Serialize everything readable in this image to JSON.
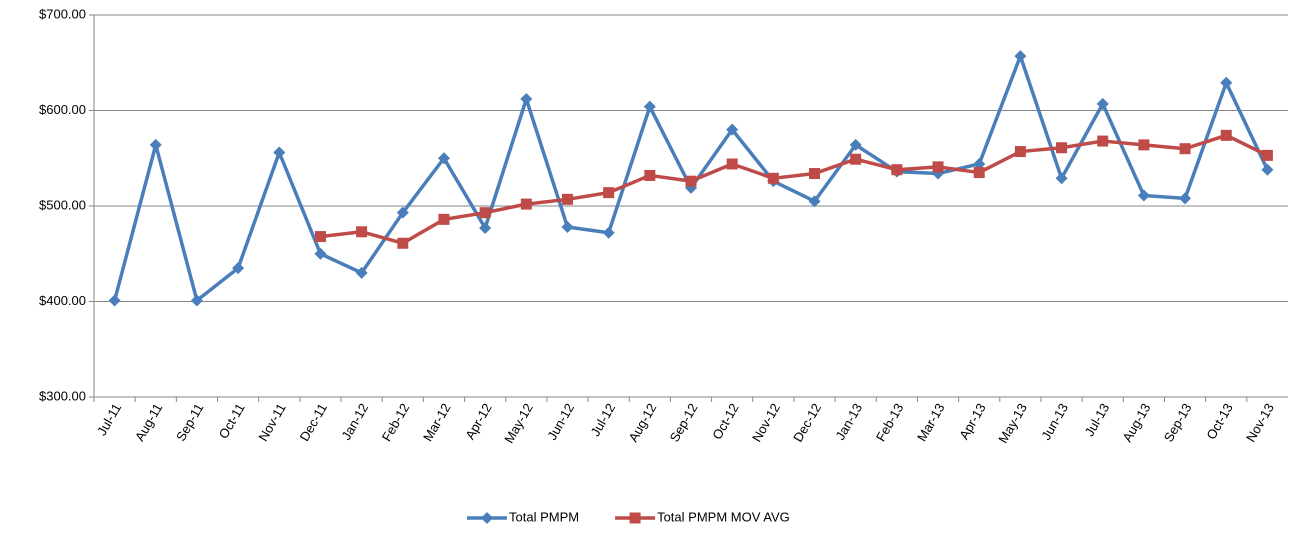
{
  "chart_data": {
    "type": "line",
    "categories": [
      "Jul-11",
      "Aug-11",
      "Sep-11",
      "Oct-11",
      "Nov-11",
      "Dec-11",
      "Jan-12",
      "Feb-12",
      "Mar-12",
      "Apr-12",
      "May-12",
      "Jun-12",
      "Jul-12",
      "Aug-12",
      "Sep-12",
      "Oct-12",
      "Nov-12",
      "Dec-12",
      "Jan-13",
      "Feb-13",
      "Mar-13",
      "Apr-13",
      "May-13",
      "Jun-13",
      "Jul-13",
      "Aug-13",
      "Sep-13",
      "Oct-13",
      "Nov-13"
    ],
    "series": [
      {
        "name": "Total PMPM",
        "color": "#4a7ebb",
        "marker": "diamond",
        "values": [
          401,
          564,
          401,
          435,
          556,
          450,
          430,
          493,
          550,
          477,
          612,
          478,
          472,
          604,
          519,
          580,
          526,
          505,
          564,
          536,
          534,
          544,
          657,
          529,
          607,
          511,
          508,
          629,
          538
        ]
      },
      {
        "name": "Total PMPM MOV AVG",
        "color": "#be4b48",
        "marker": "square",
        "values": [
          null,
          null,
          null,
          null,
          null,
          468,
          473,
          461,
          486,
          493,
          502,
          507,
          514,
          532,
          526,
          544,
          529,
          534,
          549,
          538,
          541,
          535,
          557,
          561,
          568,
          564,
          560,
          574,
          553
        ]
      }
    ],
    "ylim": [
      300,
      700
    ],
    "yticks": [
      {
        "value": 300,
        "label": "$300.00"
      },
      {
        "value": 400,
        "label": "$400.00"
      },
      {
        "value": 500,
        "label": "$500.00"
      },
      {
        "value": 600,
        "label": "$600.00"
      },
      {
        "value": 700,
        "label": "$700.00"
      }
    ],
    "grid": true,
    "legend": "bottom"
  }
}
